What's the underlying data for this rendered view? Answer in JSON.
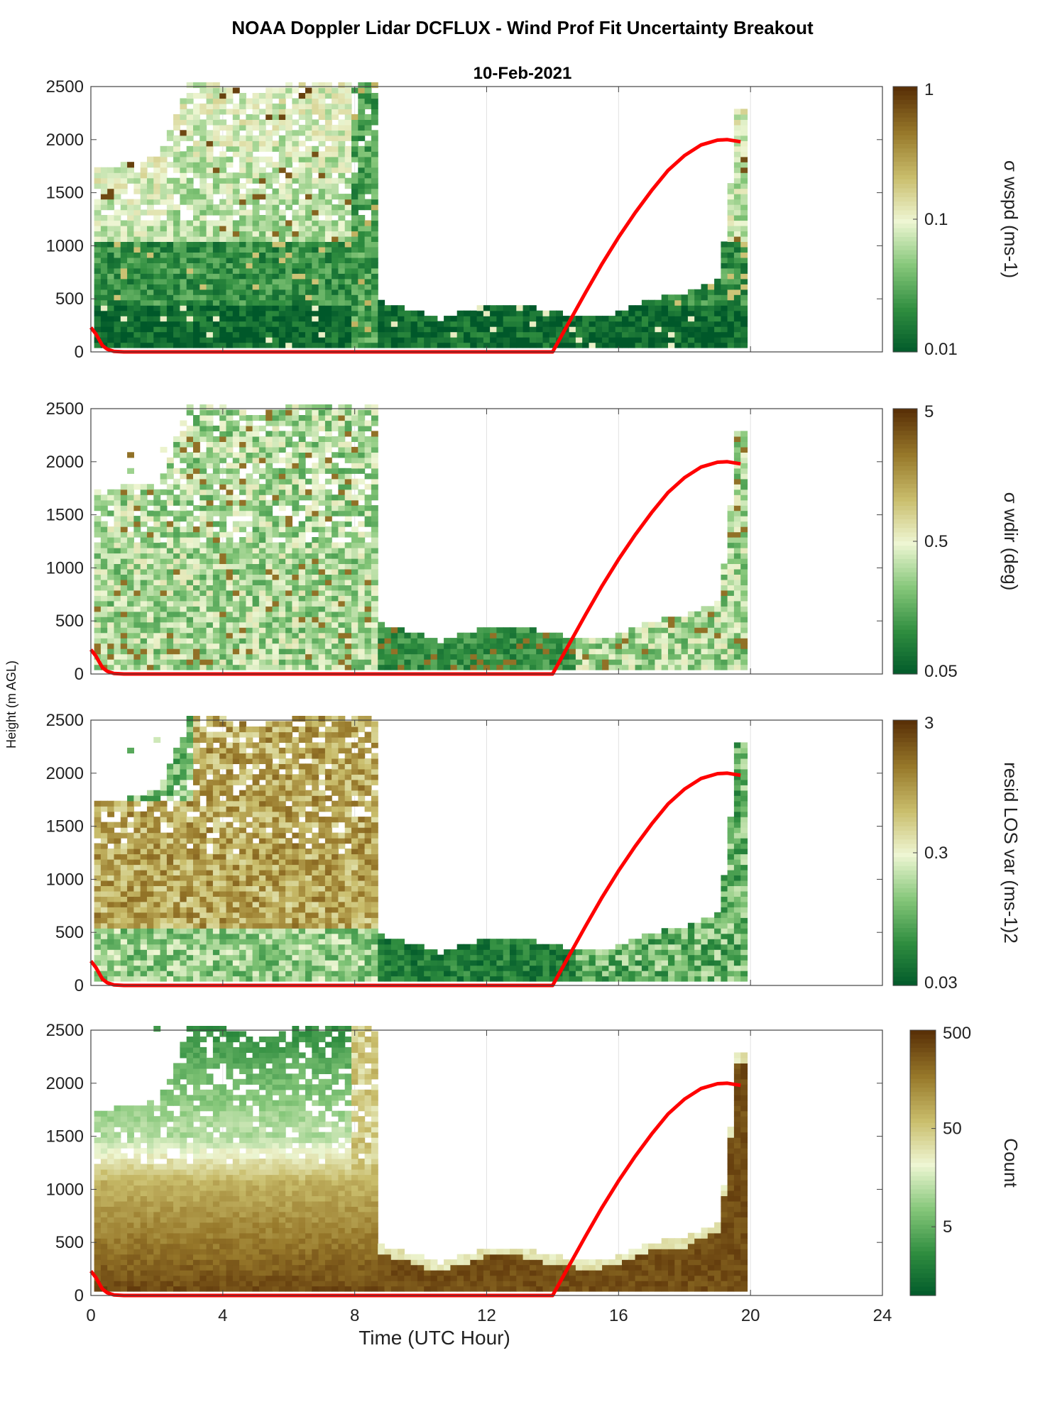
{
  "figure": {
    "title": "NOAA Doppler Lidar DCFLUX - Wind Prof Fit Uncertainty Breakout",
    "subtitle": "10-Feb-2021",
    "shared_ylabel": "Height (m AGL)",
    "xlabel": "Time (UTC Hour)"
  },
  "colors": {
    "cmap": [
      "#00582a",
      "#2f8d3f",
      "#86c77a",
      "#eef6d3",
      "#c9bd6b",
      "#97782a",
      "#5a3107"
    ],
    "boundary_layer_line": "#ff0000",
    "grid": "#e2e2e2",
    "axis": "#444444"
  },
  "chart_data": [
    {
      "type": "heatmap",
      "panel": "sigma-wspd",
      "colorbar_label": "σ wspd (ms-1)",
      "colorbar_scale": "log",
      "colorbar_range": [
        0.01,
        1
      ],
      "colorbar_ticks": [
        "0.01",
        "0.1",
        "1"
      ],
      "xlim": [
        0,
        24
      ],
      "ylim": [
        0,
        2500
      ],
      "x_ticks": [
        "0",
        "4",
        "8",
        "12",
        "16",
        "20",
        "24"
      ],
      "y_ticks": [
        "0",
        "500",
        "1000",
        "1500",
        "2000",
        "2500"
      ],
      "grid": true
    },
    {
      "type": "heatmap",
      "panel": "sigma-wdir",
      "colorbar_label": "σ wdir (deg)",
      "colorbar_scale": "log",
      "colorbar_range": [
        0.05,
        5
      ],
      "colorbar_ticks": [
        "0.05",
        "0.5",
        "5"
      ],
      "xlim": [
        0,
        24
      ],
      "ylim": [
        0,
        2500
      ],
      "x_ticks": [
        "0",
        "4",
        "8",
        "12",
        "16",
        "20",
        "24"
      ],
      "y_ticks": [
        "0",
        "500",
        "1000",
        "1500",
        "2000",
        "2500"
      ],
      "grid": true
    },
    {
      "type": "heatmap",
      "panel": "resid-los-var",
      "colorbar_label": "resid LOS var (ms-1)2",
      "colorbar_scale": "log",
      "colorbar_range": [
        0.03,
        3
      ],
      "colorbar_ticks": [
        "0.03",
        "0.3",
        "3"
      ],
      "xlim": [
        0,
        24
      ],
      "ylim": [
        0,
        2500
      ],
      "x_ticks": [
        "0",
        "4",
        "8",
        "12",
        "16",
        "20",
        "24"
      ],
      "y_ticks": [
        "0",
        "500",
        "1000",
        "1500",
        "2000",
        "2500"
      ],
      "grid": true
    },
    {
      "type": "heatmap",
      "panel": "count",
      "colorbar_label": "Count",
      "colorbar_scale": "log",
      "colorbar_range": [
        1,
        500
      ],
      "colorbar_ticks": [
        "5",
        "50",
        "500"
      ],
      "xlim": [
        0,
        24
      ],
      "ylim": [
        0,
        2500
      ],
      "x_ticks": [
        "0",
        "4",
        "8",
        "12",
        "16",
        "20",
        "24"
      ],
      "y_ticks": [
        "0",
        "500",
        "1000",
        "1500",
        "2000",
        "2500"
      ],
      "grid": true
    }
  ],
  "data_envelope": {
    "description": "approximate top of valid data coverage (m AGL) vs UTC hour",
    "time": [
      0.1,
      1.0,
      2.0,
      3.0,
      4.0,
      5.0,
      6.0,
      7.0,
      8.0,
      8.6,
      8.7,
      9.5,
      10.5,
      11.0,
      12.0,
      13.0,
      14.0,
      15.0,
      16.0,
      17.0,
      18.0,
      19.0,
      19.3,
      19.6
    ],
    "top": [
      1700,
      1750,
      1800,
      2500,
      2500,
      2400,
      2500,
      2500,
      2500,
      2500,
      450,
      400,
      280,
      330,
      430,
      420,
      350,
      300,
      350,
      480,
      520,
      650,
      1200,
      2250
    ]
  },
  "boundary_layer_height": {
    "name": "",
    "time": [
      0.0,
      0.15,
      0.35,
      0.5,
      0.7,
      1.0,
      14.0,
      14.5,
      15.0,
      15.5,
      16.0,
      16.5,
      17.0,
      17.5,
      18.0,
      18.5,
      19.0,
      19.3,
      19.7
    ],
    "height": [
      230,
      170,
      60,
      25,
      5,
      0,
      0,
      280,
      560,
      830,
      1080,
      1310,
      1520,
      1710,
      1850,
      1950,
      1995,
      2000,
      1980
    ]
  }
}
